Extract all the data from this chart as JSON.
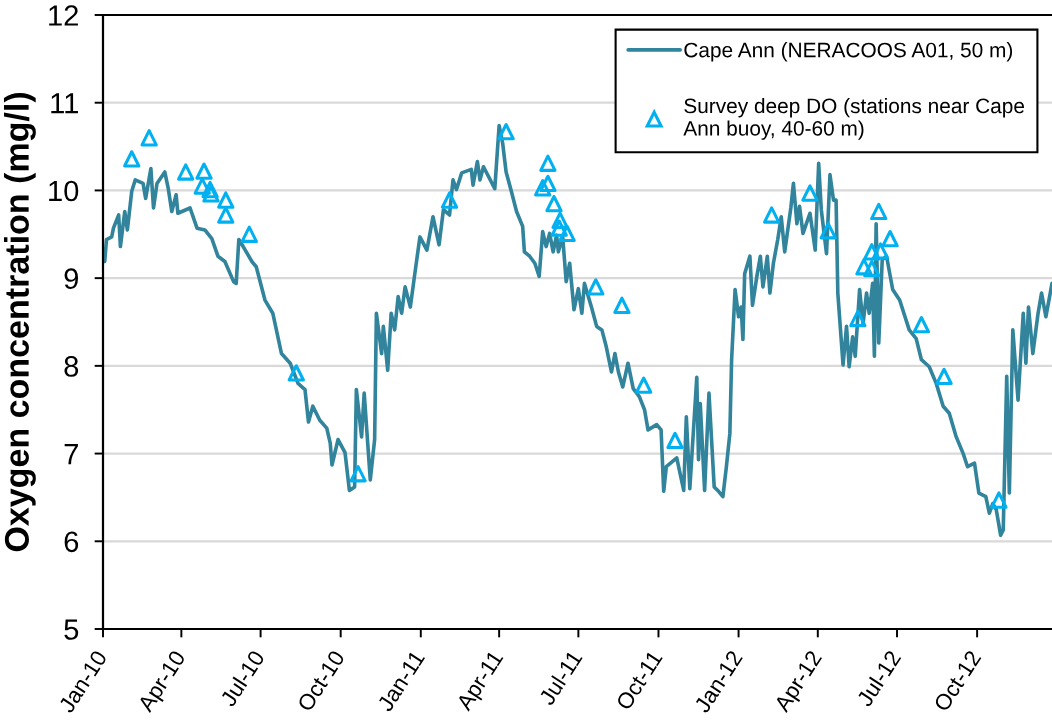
{
  "chart_data": {
    "type": "line",
    "ylabel": "Oxygen concentration (mg/l)",
    "xlim": [
      "2010-01-01",
      "2012-12-26"
    ],
    "xticks": [
      {
        "value": "2010-01-01",
        "label": "Jan-10"
      },
      {
        "value": "2010-04-01",
        "label": "Apr-10"
      },
      {
        "value": "2010-07-01",
        "label": "Jul-10"
      },
      {
        "value": "2010-10-01",
        "label": "Oct-10"
      },
      {
        "value": "2011-01-01",
        "label": "Jan-11"
      },
      {
        "value": "2011-04-01",
        "label": "Apr-11"
      },
      {
        "value": "2011-07-01",
        "label": "Jul-11"
      },
      {
        "value": "2011-10-01",
        "label": "Oct-11"
      },
      {
        "value": "2012-01-01",
        "label": "Jan-12"
      },
      {
        "value": "2012-04-01",
        "label": "Apr-12"
      },
      {
        "value": "2012-07-01",
        "label": "Jul-12"
      },
      {
        "value": "2012-10-01",
        "label": "Oct-12"
      }
    ],
    "ylim": [
      5,
      12
    ],
    "yticks": [
      5,
      6,
      7,
      8,
      9,
      10,
      11,
      12
    ],
    "grid": "y",
    "legend": "top right",
    "series": [
      {
        "name": "Cape Ann (NERACOOS A01, 50 m)",
        "color": "#31849b",
        "x": [
          "2010-01-03",
          "2010-01-05",
          "2010-01-11",
          "2010-01-13",
          "2010-01-19",
          "2010-01-21",
          "2010-01-26",
          "2010-01-29",
          "2010-02-03",
          "2010-02-07",
          "2010-02-16",
          "2010-02-19",
          "2010-02-25",
          "2010-02-28",
          "2010-03-04",
          "2010-03-13",
          "2010-03-17",
          "2010-03-21",
          "2010-03-26",
          "2010-03-28",
          "2010-04-11",
          "2010-04-19",
          "2010-04-28",
          "2010-05-06",
          "2010-05-13",
          "2010-05-21",
          "2010-05-31",
          "2010-06-03",
          "2010-06-06",
          "2010-06-11",
          "2010-06-21",
          "2010-06-26",
          "2010-07-06",
          "2010-07-15",
          "2010-07-25",
          "2010-08-04",
          "2010-08-13",
          "2010-08-21",
          "2010-08-25",
          "2010-08-30",
          "2010-09-07",
          "2010-09-15",
          "2010-09-19",
          "2010-09-21",
          "2010-09-28",
          "2010-10-06",
          "2010-10-11",
          "2010-10-17",
          "2010-10-19",
          "2010-10-25",
          "2010-10-28",
          "2010-11-04",
          "2010-11-09",
          "2010-11-11",
          "2010-11-17",
          "2010-11-19",
          "2010-11-24",
          "2010-11-28",
          "2010-12-02",
          "2010-12-06",
          "2010-12-10",
          "2010-12-14",
          "2010-12-20",
          "2010-12-25",
          "2010-12-31",
          "2011-01-08",
          "2011-01-15",
          "2011-01-22",
          "2011-01-27",
          "2011-02-03",
          "2011-02-07",
          "2011-02-11",
          "2011-02-17",
          "2011-02-28",
          "2011-03-02",
          "2011-03-07",
          "2011-03-10",
          "2011-03-14",
          "2011-03-27",
          "2011-04-01",
          "2011-04-05",
          "2011-04-09",
          "2011-04-15",
          "2011-04-21",
          "2011-04-28",
          "2011-04-30",
          "2011-05-06",
          "2011-05-12",
          "2011-05-17",
          "2011-05-21",
          "2011-05-25",
          "2011-05-29",
          "2011-06-02",
          "2011-06-06",
          "2011-06-08",
          "2011-06-13",
          "2011-06-17",
          "2011-06-21",
          "2011-06-26",
          "2011-07-01",
          "2011-07-05",
          "2011-07-08",
          "2011-07-16",
          "2011-07-22",
          "2011-07-28",
          "2011-08-02",
          "2011-08-08",
          "2011-08-12",
          "2011-08-16",
          "2011-08-21",
          "2011-08-27",
          "2011-09-02",
          "2011-09-09",
          "2011-09-15",
          "2011-09-19",
          "2011-09-29",
          "2011-10-04",
          "2011-10-07",
          "2011-10-10",
          "2011-10-22",
          "2011-10-25",
          "2011-10-30",
          "2011-11-02",
          "2011-11-06",
          "2011-11-14",
          "2011-11-16",
          "2011-11-18",
          "2011-11-23",
          "2011-11-28",
          "2011-12-04",
          "2011-12-09",
          "2011-12-14",
          "2011-12-18",
          "2011-12-22",
          "2011-12-24",
          "2011-12-28",
          "2012-01-01",
          "2012-01-04",
          "2012-01-06",
          "2012-01-08",
          "2012-01-14",
          "2012-01-17",
          "2012-01-22",
          "2012-01-26",
          "2012-01-29",
          "2012-02-03",
          "2012-02-06",
          "2012-02-10",
          "2012-02-15",
          "2012-02-19",
          "2012-02-23",
          "2012-03-01",
          "2012-03-04",
          "2012-03-08",
          "2012-03-11",
          "2012-03-15",
          "2012-03-23",
          "2012-03-29",
          "2012-04-02",
          "2012-04-05",
          "2012-04-11",
          "2012-04-15",
          "2012-04-19",
          "2012-04-22",
          "2012-04-24",
          "2012-04-30",
          "2012-05-04",
          "2012-05-07",
          "2012-05-11",
          "2012-05-14",
          "2012-05-19",
          "2012-05-23",
          "2012-05-27",
          "2012-05-30",
          "2012-06-03",
          "2012-06-05",
          "2012-06-07",
          "2012-06-10",
          "2012-06-14",
          "2012-06-19",
          "2012-06-26",
          "2012-07-04",
          "2012-07-15",
          "2012-07-23",
          "2012-07-29",
          "2012-08-07",
          "2012-08-15",
          "2012-08-23",
          "2012-08-30",
          "2012-09-07",
          "2012-09-15",
          "2012-09-20",
          "2012-09-28",
          "2012-10-03",
          "2012-10-11",
          "2012-10-15",
          "2012-10-19",
          "2012-10-23",
          "2012-10-28",
          "2012-10-31",
          "2012-11-04",
          "2012-11-07",
          "2012-11-11",
          "2012-11-17",
          "2012-11-23",
          "2012-11-26",
          "2012-11-29",
          "2012-12-04",
          "2012-12-10",
          "2012-12-14",
          "2012-12-19",
          "2012-12-26"
        ],
        "values": [
          9.19,
          9.44,
          9.47,
          9.57,
          9.72,
          9.36,
          9.76,
          9.55,
          9.99,
          10.12,
          10.08,
          9.91,
          10.25,
          9.8,
          10.08,
          10.21,
          10.02,
          9.76,
          9.95,
          9.74,
          9.8,
          9.57,
          9.55,
          9.45,
          9.25,
          9.19,
          8.96,
          8.94,
          9.44,
          9.36,
          9.19,
          9.13,
          8.75,
          8.6,
          8.14,
          8.03,
          7.8,
          7.73,
          7.36,
          7.54,
          7.38,
          7.29,
          7.12,
          6.87,
          7.16,
          7.01,
          6.58,
          6.62,
          7.73,
          7.19,
          7.69,
          6.7,
          7.16,
          8.6,
          8.14,
          8.45,
          7.95,
          8.6,
          8.41,
          8.79,
          8.6,
          8.9,
          8.67,
          9.04,
          9.47,
          9.32,
          9.7,
          9.38,
          9.78,
          9.72,
          10.12,
          10.01,
          10.2,
          10.24,
          10.06,
          10.33,
          10.12,
          10.27,
          10.02,
          10.74,
          10.54,
          10.21,
          9.99,
          9.76,
          9.59,
          9.3,
          9.25,
          9.17,
          9.02,
          9.53,
          9.36,
          9.51,
          9.3,
          9.49,
          9.3,
          9.47,
          8.96,
          9.17,
          8.64,
          8.88,
          8.6,
          8.94,
          8.67,
          8.45,
          8.41,
          8.22,
          7.93,
          8.14,
          7.93,
          7.76,
          8.03,
          7.74,
          7.65,
          7.5,
          7.27,
          7.33,
          7.27,
          6.57,
          6.85,
          6.95,
          6.81,
          6.58,
          7.42,
          6.6,
          7.87,
          6.93,
          7.57,
          6.58,
          7.69,
          6.62,
          6.57,
          6.51,
          6.85,
          7.23,
          8.07,
          8.87,
          8.56,
          8.67,
          8.3,
          9.05,
          9.25,
          8.69,
          9.02,
          9.25,
          8.9,
          9.25,
          8.83,
          9.17,
          9.44,
          9.7,
          9.3,
          9.8,
          10.08,
          9.62,
          9.82,
          9.51,
          9.74,
          9.32,
          10.31,
          9.78,
          9.28,
          10.18,
          9.89,
          9.89,
          8.83,
          8.01,
          8.45,
          7.99,
          8.33,
          8.11,
          8.87,
          8.48,
          8.83,
          8.6,
          8.94,
          8.11,
          9.62,
          8.26,
          9.21,
          9.25,
          8.87,
          8.75,
          8.41,
          8.31,
          8.07,
          7.99,
          7.8,
          7.54,
          7.46,
          7.19,
          7.0,
          6.85,
          6.89,
          6.55,
          6.51,
          6.32,
          6.43,
          6.36,
          6.07,
          6.13,
          7.88,
          6.55,
          8.41,
          7.61,
          8.6,
          8.03,
          8.67,
          8.14,
          8.6,
          8.83,
          8.56,
          8.94
        ]
      },
      {
        "name": "Survey deep DO (stations near Cape Ann buoy, 40-60 m)",
        "type": "scatter",
        "color": "#00b0f0",
        "marker": "triangle",
        "x": [
          "2010-02-03",
          "2010-02-23",
          "2010-04-06",
          "2010-04-25",
          "2010-04-27",
          "2010-05-04",
          "2010-05-05",
          "2010-05-22",
          "2010-05-22",
          "2010-06-18",
          "2010-08-11",
          "2010-10-21",
          "2011-02-03",
          "2011-04-09",
          "2011-05-21",
          "2011-05-27",
          "2011-05-27",
          "2011-06-03",
          "2011-06-09",
          "2011-06-10",
          "2011-06-18",
          "2011-07-21",
          "2011-08-20",
          "2011-09-14",
          "2011-10-20",
          "2012-02-08",
          "2012-03-23",
          "2012-04-13",
          "2012-05-17",
          "2012-05-24",
          "2012-06-02",
          "2012-06-02",
          "2012-06-10",
          "2012-06-12",
          "2012-06-23",
          "2012-07-29",
          "2012-08-24",
          "2012-10-26"
        ],
        "values": [
          10.36,
          10.6,
          10.21,
          10.05,
          10.22,
          10.01,
          9.96,
          9.89,
          9.72,
          9.5,
          7.92,
          6.77,
          9.89,
          10.67,
          10.03,
          10.31,
          10.08,
          9.85,
          9.57,
          9.66,
          9.51,
          8.9,
          8.69,
          7.78,
          7.15,
          9.72,
          9.97,
          9.54,
          8.54,
          9.13,
          9.11,
          9.3,
          9.76,
          9.31,
          9.45,
          8.47,
          7.88,
          6.47
        ]
      }
    ]
  }
}
